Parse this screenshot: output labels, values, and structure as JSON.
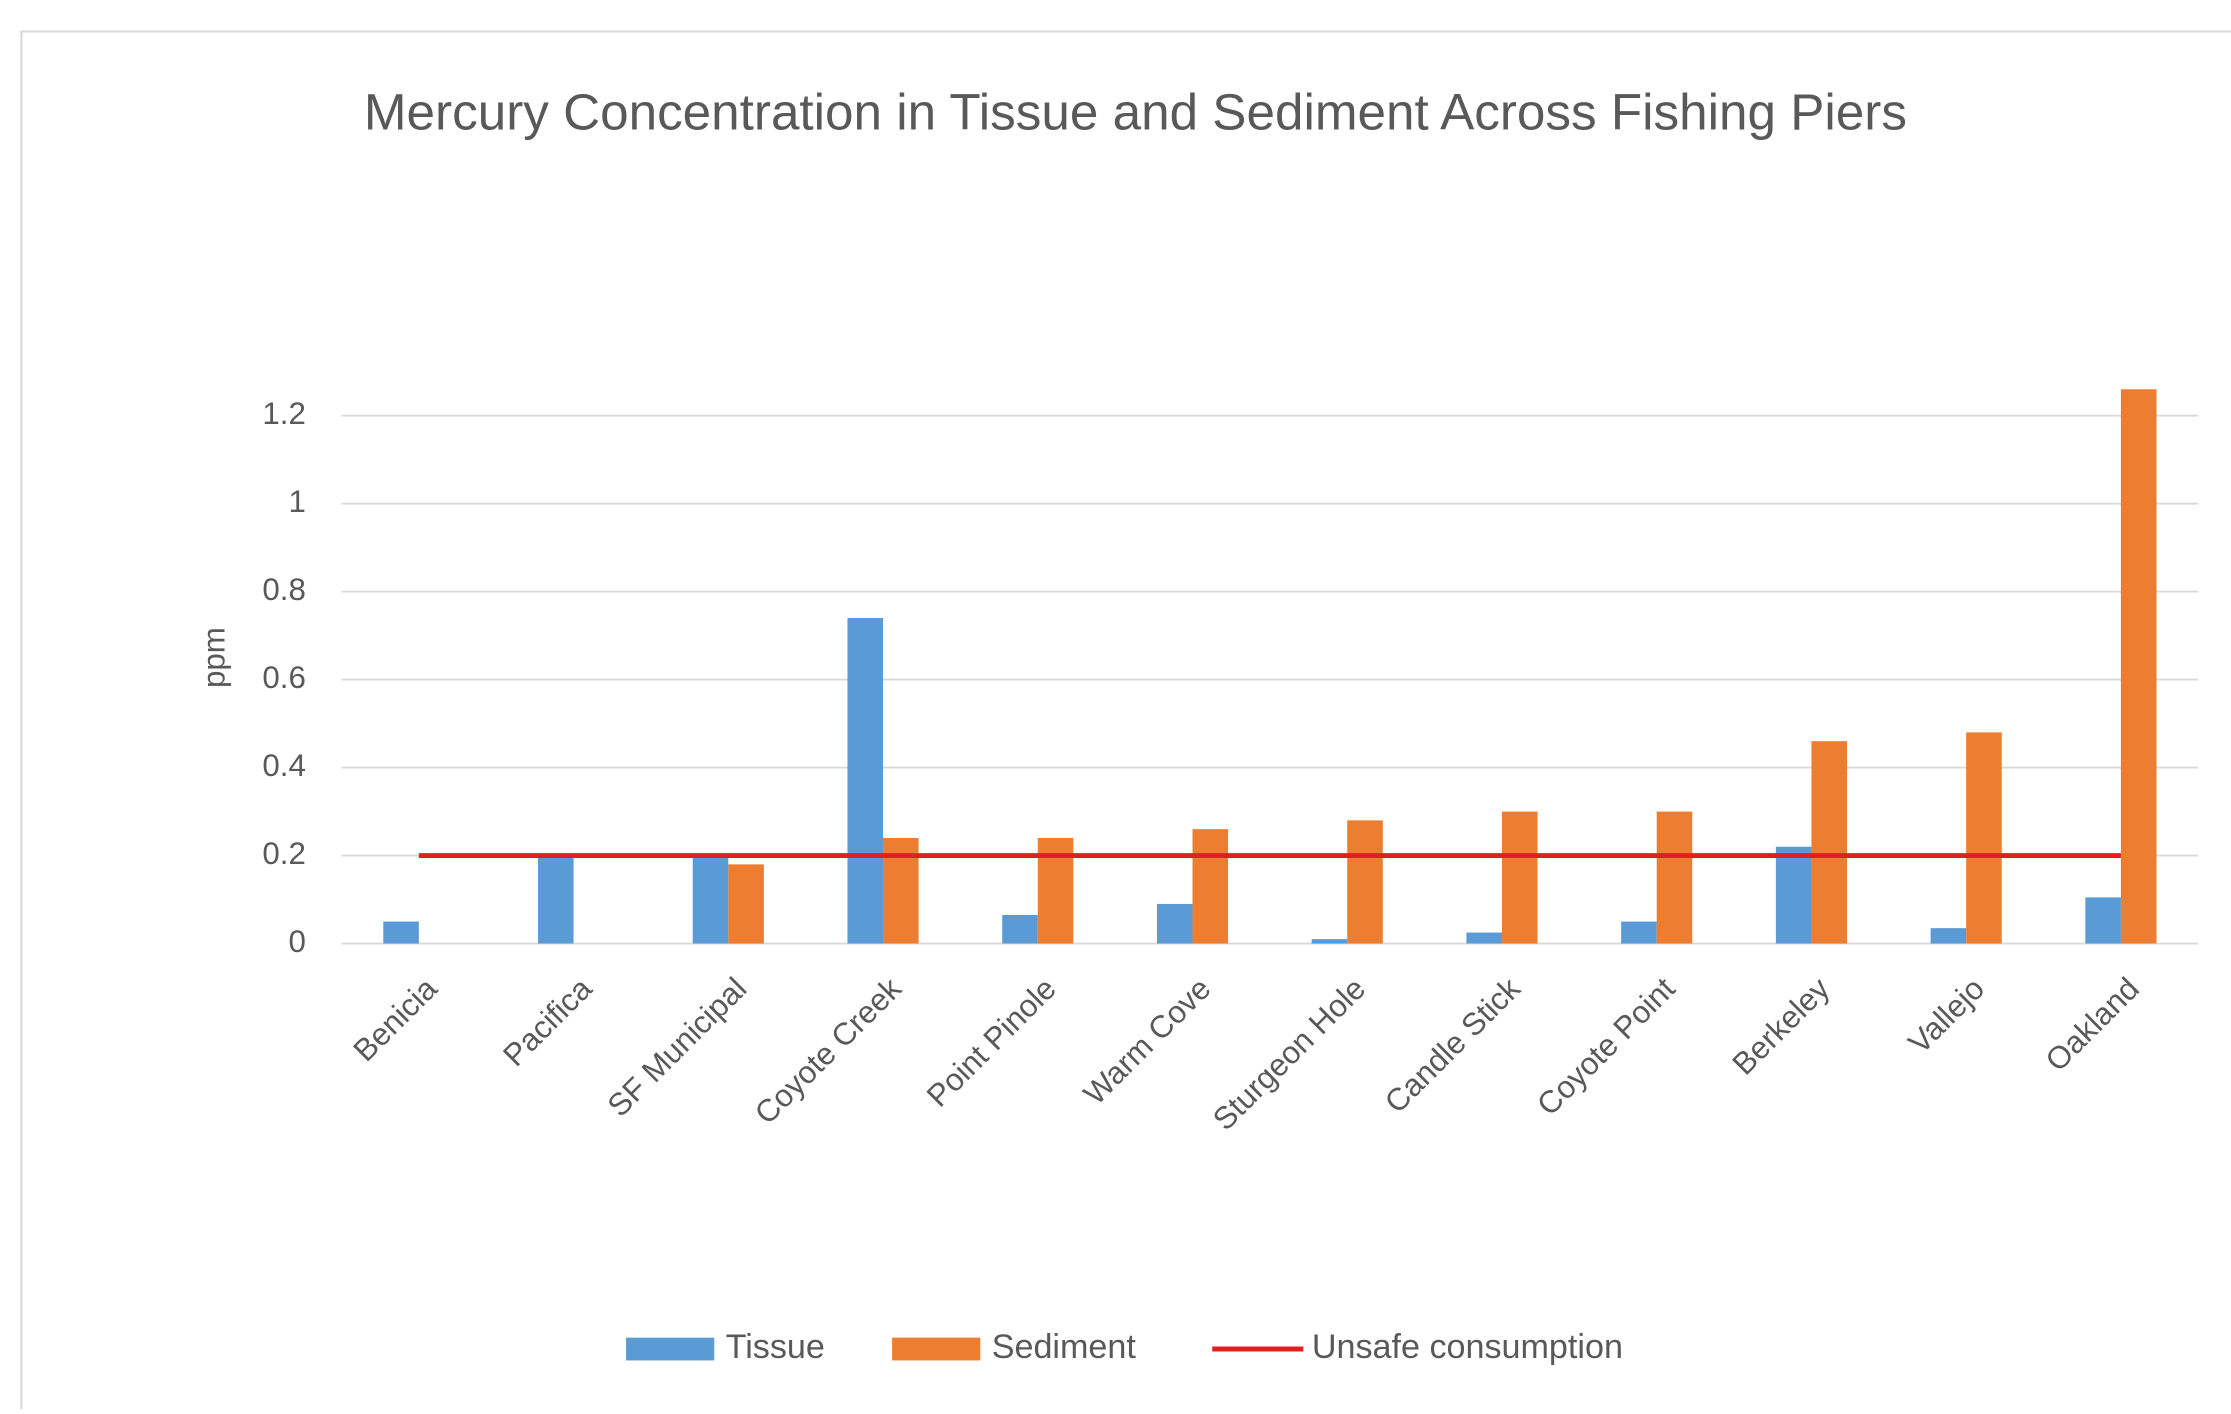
{
  "chart_data": {
    "type": "bar",
    "title": "Mercury Concentration in Tissue and Sediment Across Fishing Piers",
    "ylabel": "ppm",
    "categories": [
      "Benicia",
      "Pacifica",
      "SF Municipal",
      "Coyote Creek",
      "Point Pinole",
      "Warm Cove",
      "Sturgeon Hole",
      "Candle Stick",
      "Coyote Point",
      "Berkeley",
      "Vallejo",
      "Oakland"
    ],
    "series": [
      {
        "name": "Tissue",
        "type": "bar",
        "color": "#5b9bd5",
        "values": [
          0.05,
          0.2,
          0.2,
          0.74,
          0.065,
          0.09,
          0.01,
          0.025,
          0.05,
          0.22,
          0.035,
          0.105
        ]
      },
      {
        "name": "Sediment",
        "type": "bar",
        "color": "#ed7d31",
        "values": [
          null,
          null,
          0.18,
          0.24,
          0.24,
          0.26,
          0.28,
          0.3,
          0.3,
          0.46,
          0.48,
          1.26
        ]
      },
      {
        "name": "Unsafe consumption",
        "type": "line",
        "color": "#e0201e",
        "values": [
          0.2,
          0.2,
          0.2,
          0.2,
          0.2,
          0.2,
          0.2,
          0.2,
          0.2,
          0.2,
          0.2,
          0.2
        ]
      }
    ],
    "ylim": [
      0,
      1.2
    ],
    "yticks": [
      0,
      0.2,
      0.4,
      0.6,
      0.8,
      1,
      1.2
    ],
    "grid": true,
    "legend": "bottom"
  }
}
